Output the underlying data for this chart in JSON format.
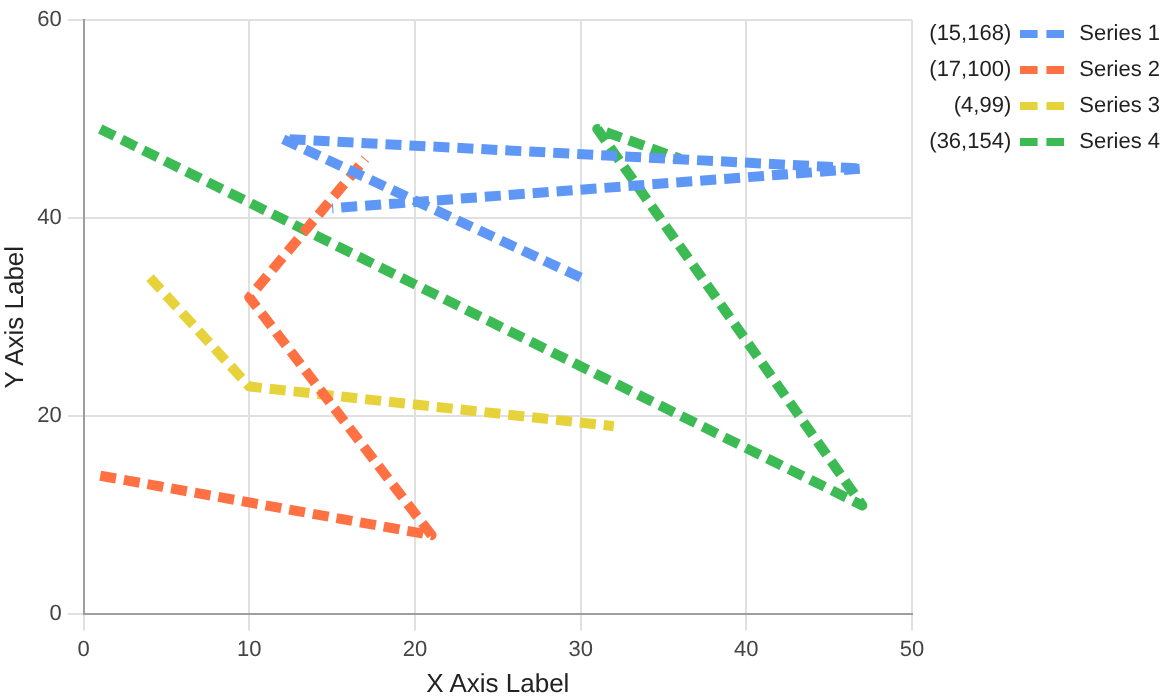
{
  "chart_data": {
    "type": "line",
    "xlabel": "X Axis Label",
    "ylabel": "Y Axis Label",
    "xlim": [
      0,
      50
    ],
    "xticks": [
      0,
      10,
      20,
      30,
      40,
      50
    ],
    "ylim": [
      0,
      60
    ],
    "yticks": [
      0,
      20,
      40,
      60
    ],
    "grid": true,
    "legend": "top right",
    "marker": "none",
    "line_style": "dashed",
    "annotations": [
      "(15,168)",
      "(17,100)",
      "(4,99)",
      "(36,154)"
    ],
    "series": [
      {
        "name": "Series 1",
        "color": "#5e97f6",
        "x": [
          30,
          12,
          47,
          15
        ],
        "values": [
          34,
          48,
          45,
          41
        ]
      },
      {
        "name": "Series 2",
        "color": "#ff7043",
        "x": [
          1,
          21,
          10,
          17
        ],
        "values": [
          14,
          8,
          32,
          46
        ]
      },
      {
        "name": "Series 3",
        "color": "#e6d33c",
        "x": [
          4,
          10,
          32
        ],
        "values": [
          34,
          23,
          19
        ]
      },
      {
        "name": "Series 4",
        "color": "#3cba54",
        "x": [
          1,
          47,
          31,
          36
        ],
        "values": [
          49,
          11,
          49,
          46
        ]
      }
    ]
  }
}
